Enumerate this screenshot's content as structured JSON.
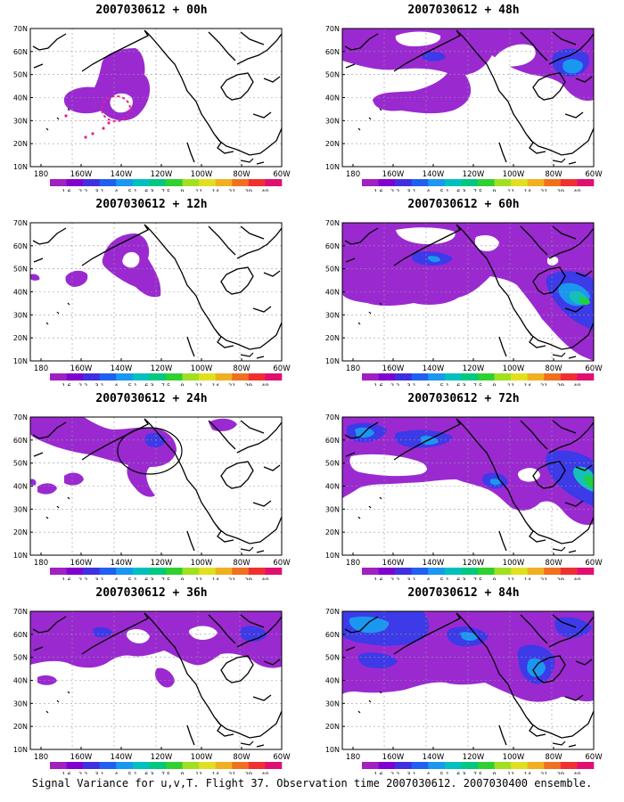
{
  "panels": [
    {
      "title": "2007030612 + 00h"
    },
    {
      "title": "2007030612 + 48h"
    },
    {
      "title": "2007030612 + 12h"
    },
    {
      "title": "2007030612 + 60h"
    },
    {
      "title": "2007030612 + 24h"
    },
    {
      "title": "2007030612 + 72h"
    },
    {
      "title": "2007030612 + 36h"
    },
    {
      "title": "2007030612 + 84h"
    }
  ],
  "axes": {
    "lat_labels": [
      "70N",
      "60N",
      "50N",
      "40N",
      "30N",
      "20N",
      "10N"
    ],
    "lon_labels": [
      "180",
      "160W",
      "140W",
      "120W",
      "100W",
      "80W",
      "60W"
    ]
  },
  "colorbar": {
    "labels": [
      "1.6",
      "2.2",
      "3.1",
      "4",
      "5.1",
      "6.3",
      "7.5",
      "9",
      "11",
      "14",
      "21",
      "29",
      "40"
    ],
    "colors": [
      "#a020c0",
      "#8000d0",
      "#4030e0",
      "#2060f0",
      "#1a98f0",
      "#00c0c0",
      "#00c880",
      "#30d030",
      "#a0e020",
      "#e0e020",
      "#f0b020",
      "#f07020",
      "#f03030",
      "#e01070"
    ]
  },
  "caption": "Signal Variance for u,v,T. Flight 37. Observation time 2007030612. 2007030400 ensemble."
}
